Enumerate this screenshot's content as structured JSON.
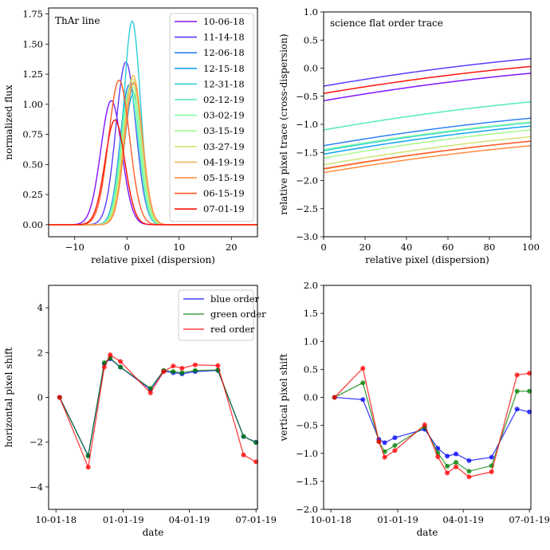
{
  "chart_data": [
    {
      "type": "line",
      "panel": "top-left",
      "title": "ThAr line",
      "xlabel": "relative pixel (dispersion)",
      "ylabel": "normalized flux",
      "xlim": [
        -15,
        25
      ],
      "ylim": [
        -0.1,
        1.8
      ],
      "xticks": [
        -10,
        0,
        10,
        20
      ],
      "yticks": [
        0.0,
        0.25,
        0.5,
        0.75,
        1.0,
        1.25,
        1.5,
        1.75
      ],
      "ytick_labels": [
        "0.00",
        "0.25",
        "0.50",
        "0.75",
        "1.00",
        "1.25",
        "1.50",
        "1.75"
      ],
      "legend_position": "top-right",
      "series": [
        {
          "name": "10-06-18",
          "color": "#7f14ff",
          "amplitude": 1.03,
          "center": -3.0,
          "sigma": 2.0
        },
        {
          "name": "11-14-18",
          "color": "#5b3bfd",
          "amplitude": 1.35,
          "center": -0.2,
          "sigma": 1.9
        },
        {
          "name": "12-06-18",
          "color": "#2f81f7",
          "amplitude": 1.16,
          "center": 0.4,
          "sigma": 1.7
        },
        {
          "name": "12-15-18",
          "color": "#11a6ed",
          "amplitude": 1.09,
          "center": 1.2,
          "sigma": 1.7
        },
        {
          "name": "12-31-18",
          "color": "#2ccdd8",
          "amplitude": 1.69,
          "center": 1.0,
          "sigma": 1.6
        },
        {
          "name": "02-12-19",
          "color": "#54ebc0",
          "amplitude": 1.13,
          "center": 0.5,
          "sigma": 1.7
        },
        {
          "name": "03-02-19",
          "color": "#7ffda6",
          "amplitude": 1.16,
          "center": 0.7,
          "sigma": 1.7
        },
        {
          "name": "03-15-19",
          "color": "#a7fa8c",
          "amplitude": 1.19,
          "center": 0.9,
          "sigma": 1.7
        },
        {
          "name": "03-27-19",
          "color": "#cfe374",
          "amplitude": 1.21,
          "center": 1.1,
          "sigma": 1.7
        },
        {
          "name": "04-19-19",
          "color": "#f0b85a",
          "amplitude": 1.24,
          "center": 1.2,
          "sigma": 1.7
        },
        {
          "name": "05-15-19",
          "color": "#ff8c40",
          "amplitude": 1.18,
          "center": 1.3,
          "sigma": 1.7
        },
        {
          "name": "06-15-19",
          "color": "#ff5b2a",
          "amplitude": 1.2,
          "center": -1.5,
          "sigma": 2.0
        },
        {
          "name": "07-01-19",
          "color": "#ff1408",
          "amplitude": 0.87,
          "center": -2.3,
          "sigma": 1.9
        }
      ]
    },
    {
      "type": "line",
      "panel": "top-right",
      "title": "science flat order trace",
      "xlabel": "relative pixel (dispersion)",
      "ylabel": "relative pixel trace (cross-dispersion)",
      "xlim": [
        0,
        100
      ],
      "ylim": [
        -3.0,
        1.0
      ],
      "xticks": [
        0,
        20,
        40,
        60,
        80,
        100
      ],
      "yticks": [
        -3.0,
        -2.5,
        -2.0,
        -1.5,
        -1.0,
        -0.5,
        0.0,
        0.5,
        1.0
      ],
      "ytick_labels": [
        "−3.0",
        "−2.5",
        "−2.0",
        "−1.5",
        "−1.0",
        "−0.5",
        "0.0",
        "0.5",
        "1.0"
      ],
      "series": [
        {
          "name": "10-06-18",
          "color": "#7f14ff",
          "y_start": -0.58,
          "y_end": -0.09
        },
        {
          "name": "11-14-18",
          "color": "#5b3bfd",
          "y_start": -0.32,
          "y_end": 0.17
        },
        {
          "name": "12-06-18",
          "color": "#2f81f7",
          "y_start": -1.38,
          "y_end": -0.89
        },
        {
          "name": "12-15-18",
          "color": "#11a6ed",
          "y_start": -1.53,
          "y_end": -1.03
        },
        {
          "name": "12-31-18",
          "color": "#2ccdd8",
          "y_start": -1.47,
          "y_end": -0.97
        },
        {
          "name": "02-12-19",
          "color": "#54ebc0",
          "y_start": -1.1,
          "y_end": -0.6
        },
        {
          "name": "03-02-19",
          "color": "#7ffda6",
          "y_start": -1.45,
          "y_end": -0.96
        },
        {
          "name": "03-15-19",
          "color": "#a7fa8c",
          "y_start": -1.6,
          "y_end": -1.1
        },
        {
          "name": "03-27-19",
          "color": "#cfe374",
          "y_start": -1.72,
          "y_end": -1.22
        },
        {
          "name": "04-19-19",
          "color": "#f0b85a",
          "y_start": -1.8,
          "y_end": -1.3
        },
        {
          "name": "05-15-19",
          "color": "#ff8c40",
          "y_start": -1.86,
          "y_end": -1.38
        },
        {
          "name": "06-15-19",
          "color": "#ff5b2a",
          "y_start": -1.79,
          "y_end": -1.3
        },
        {
          "name": "07-01-19",
          "color": "#ff1408",
          "y_start": -0.45,
          "y_end": 0.03
        }
      ]
    },
    {
      "type": "line",
      "panel": "bottom-left",
      "xlabel": "date",
      "ylabel": "horizontal pixel shift",
      "xlim": [
        -10,
        275
      ],
      "ylim": [
        -5,
        5
      ],
      "xticks": [
        0,
        92,
        182,
        273
      ],
      "xtick_labels": [
        "10-01-18",
        "01-01-19",
        "04-01-19",
        "07-01-19"
      ],
      "yticks": [
        -4,
        -2,
        0,
        2,
        4
      ],
      "ytick_labels": [
        "−4",
        "−2",
        "0",
        "2",
        "4"
      ],
      "legend_position": "top-right",
      "x_days": [
        5,
        44,
        66,
        74,
        88,
        129,
        147,
        160,
        172,
        190,
        221,
        256,
        273
      ],
      "series": [
        {
          "name": "blue order",
          "color": "#0000ff",
          "values": [
            0.0,
            -2.6,
            1.5,
            1.72,
            1.35,
            0.35,
            1.17,
            1.1,
            1.05,
            1.15,
            1.2,
            -1.75,
            -2.0
          ]
        },
        {
          "name": "green order",
          "color": "#008000",
          "values": [
            0.0,
            -2.62,
            1.55,
            1.75,
            1.35,
            0.4,
            1.2,
            1.15,
            1.1,
            1.2,
            1.22,
            -1.75,
            -2.02
          ]
        },
        {
          "name": "red order",
          "color": "#ff0000",
          "values": [
            0.0,
            -3.12,
            1.35,
            1.9,
            1.6,
            0.2,
            1.15,
            1.4,
            1.3,
            1.45,
            1.42,
            -2.57,
            -2.88
          ]
        }
      ]
    },
    {
      "type": "line",
      "panel": "bottom-right",
      "xlabel": "date",
      "ylabel": "vertical pixel shift",
      "xlim": [
        -10,
        275
      ],
      "ylim": [
        -2.0,
        2.0
      ],
      "xticks": [
        0,
        92,
        182,
        273
      ],
      "xtick_labels": [
        "10-01-18",
        "01-01-19",
        "04-01-19",
        "07-01-19"
      ],
      "yticks": [
        -2.0,
        -1.5,
        -1.0,
        -0.5,
        0.0,
        0.5,
        1.0,
        1.5,
        2.0
      ],
      "ytick_labels": [
        "−2.0",
        "−1.5",
        "−1.0",
        "−0.5",
        "0.0",
        "0.5",
        "1.0",
        "1.5",
        "2.0"
      ],
      "x_days": [
        5,
        44,
        66,
        74,
        88,
        129,
        147,
        160,
        172,
        190,
        221,
        256,
        273
      ],
      "series": [
        {
          "name": "blue order",
          "color": "#0000ff",
          "values": [
            0.0,
            -0.04,
            -0.75,
            -0.81,
            -0.72,
            -0.57,
            -0.91,
            -1.05,
            -1.01,
            -1.13,
            -1.07,
            -0.21,
            -0.26
          ]
        },
        {
          "name": "green order",
          "color": "#008000",
          "values": [
            0.0,
            0.26,
            -0.79,
            -0.97,
            -0.86,
            -0.53,
            -0.99,
            -1.23,
            -1.16,
            -1.32,
            -1.22,
            0.11,
            0.11
          ]
        },
        {
          "name": "red order",
          "color": "#ff0000",
          "values": [
            0.0,
            0.52,
            -0.79,
            -1.07,
            -0.95,
            -0.49,
            -1.06,
            -1.35,
            -1.24,
            -1.42,
            -1.33,
            0.4,
            0.43
          ]
        }
      ]
    }
  ]
}
